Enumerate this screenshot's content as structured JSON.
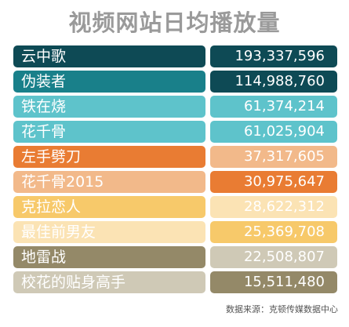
{
  "title": "视频网站日均播放量",
  "source": "数据来源：克顿传媒数据中心",
  "chart_data": {
    "type": "table",
    "title": "视频网站日均播放量",
    "columns": [
      "name",
      "value"
    ],
    "rows": [
      {
        "name": "云中歌",
        "value": "193,337,596",
        "name_color": "#0e4a55",
        "value_color": "#0e4a55"
      },
      {
        "name": "伪装者",
        "value": "114,988,760",
        "name_color": "#19808a",
        "value_color": "#0e4a55"
      },
      {
        "name": "铁在烧",
        "value": "61,374,214",
        "name_color": "#5ec3cb",
        "value_color": "#5ec3cb"
      },
      {
        "name": "花千骨",
        "value": "61,025,904",
        "name_color": "#5ec3cb",
        "value_color": "#5ec3cb"
      },
      {
        "name": "左手劈刀",
        "value": "37,317,605",
        "name_color": "#e97c33",
        "value_color": "#f2b98a"
      },
      {
        "name": "花千骨2015",
        "value": "30,975,647",
        "name_color": "#f2b98a",
        "value_color": "#e97c33"
      },
      {
        "name": "克拉恋人",
        "value": "28,622,312",
        "name_color": "#f7c96a",
        "value_color": "#fbe3b4"
      },
      {
        "name": "最佳前男友",
        "value": "25,369,708",
        "name_color": "#fbe3b4",
        "value_color": "#f7c96a"
      },
      {
        "name": "地雷战",
        "value": "22,508,807",
        "name_color": "#948968",
        "value_color": "#cfc9b6"
      },
      {
        "name": "校花的贴身高手",
        "value": "15,511,480",
        "name_color": "#cfc9b6",
        "value_color": "#948968"
      }
    ]
  }
}
